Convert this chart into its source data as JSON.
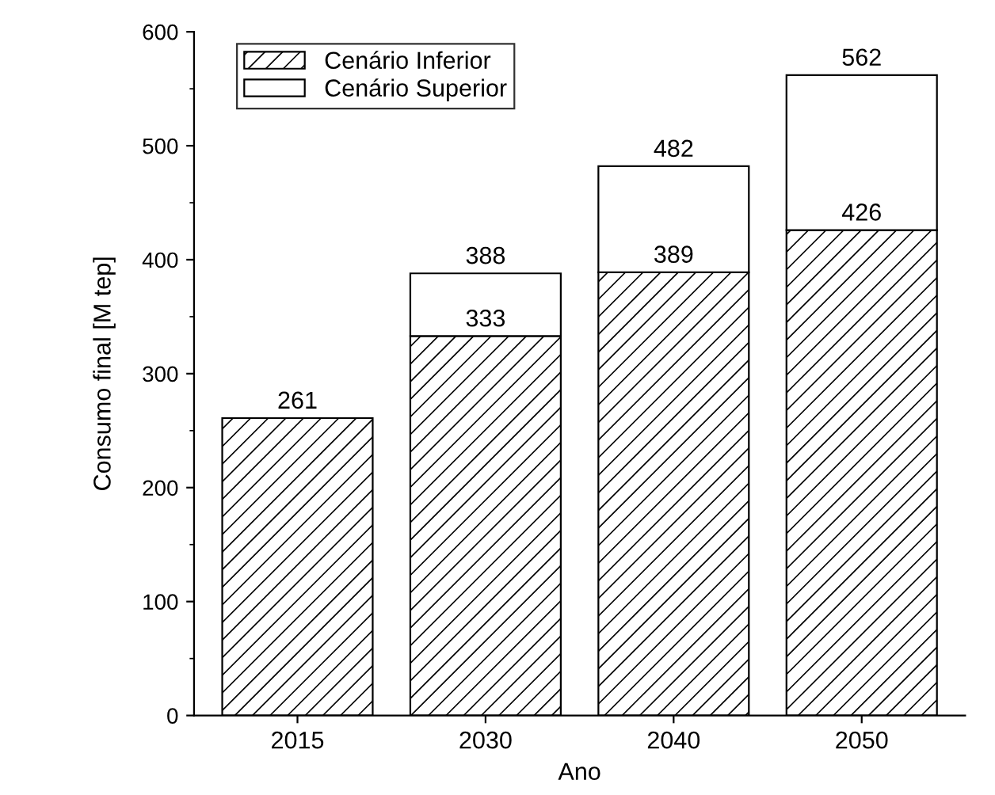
{
  "chart_data": {
    "type": "bar",
    "stacked": true,
    "xlabel": "Ano",
    "ylabel": "Consumo final [M tep]",
    "categories": [
      "2015",
      "2030",
      "2040",
      "2050"
    ],
    "series": [
      {
        "name": "Cenário Inferior",
        "color": "#000000",
        "values": [
          261,
          333,
          389,
          426
        ],
        "value_labels": [
          "261",
          "333",
          "389",
          "426"
        ]
      },
      {
        "name": "Cenário Superior",
        "color": "#ffffff",
        "values": [
          null,
          55,
          93,
          136
        ]
      }
    ],
    "totals": [
      null,
      "388",
      "482",
      "562"
    ],
    "ylim": [
      0,
      600
    ],
    "yticks": [
      0,
      100,
      200,
      300,
      400,
      500,
      600
    ],
    "grid": false,
    "legend": "top left"
  }
}
